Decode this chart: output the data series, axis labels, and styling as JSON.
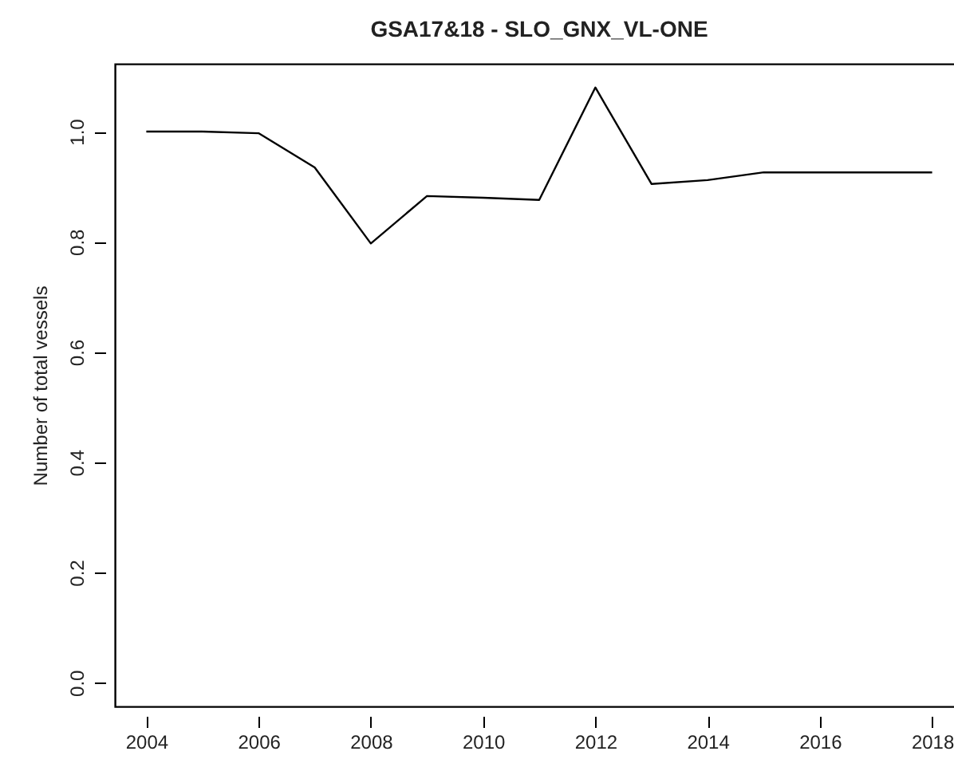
{
  "chart_data": {
    "type": "line",
    "title": "GSA17&18 - SLO_GNX_VL-ONE",
    "ylabel": "Number of total vessels",
    "x": [
      2004,
      2005,
      2006,
      2007,
      2008,
      2009,
      2010,
      2011,
      2012,
      2013,
      2014,
      2015,
      2016,
      2017,
      2018
    ],
    "series": [
      {
        "color": "#000000",
        "values": [
          1.0,
          1.0,
          0.997,
          0.935,
          0.797,
          0.883,
          0.88,
          0.876,
          1.08,
          0.905,
          0.912,
          0.926,
          0.926,
          0.926,
          0.926
        ]
      }
    ],
    "xlim": [
      2003.44,
      2018.56
    ],
    "xticks": [
      2004,
      2006,
      2008,
      2010,
      2012,
      2014,
      2016,
      2018
    ],
    "ylim": [
      -0.043,
      1.123
    ],
    "yticks": [
      {
        "value": 0,
        "label": "0.0"
      },
      0.2,
      0.4,
      0.6,
      0.8,
      {
        "value": 1,
        "label": "1.0"
      }
    ],
    "line_style": "solid"
  }
}
